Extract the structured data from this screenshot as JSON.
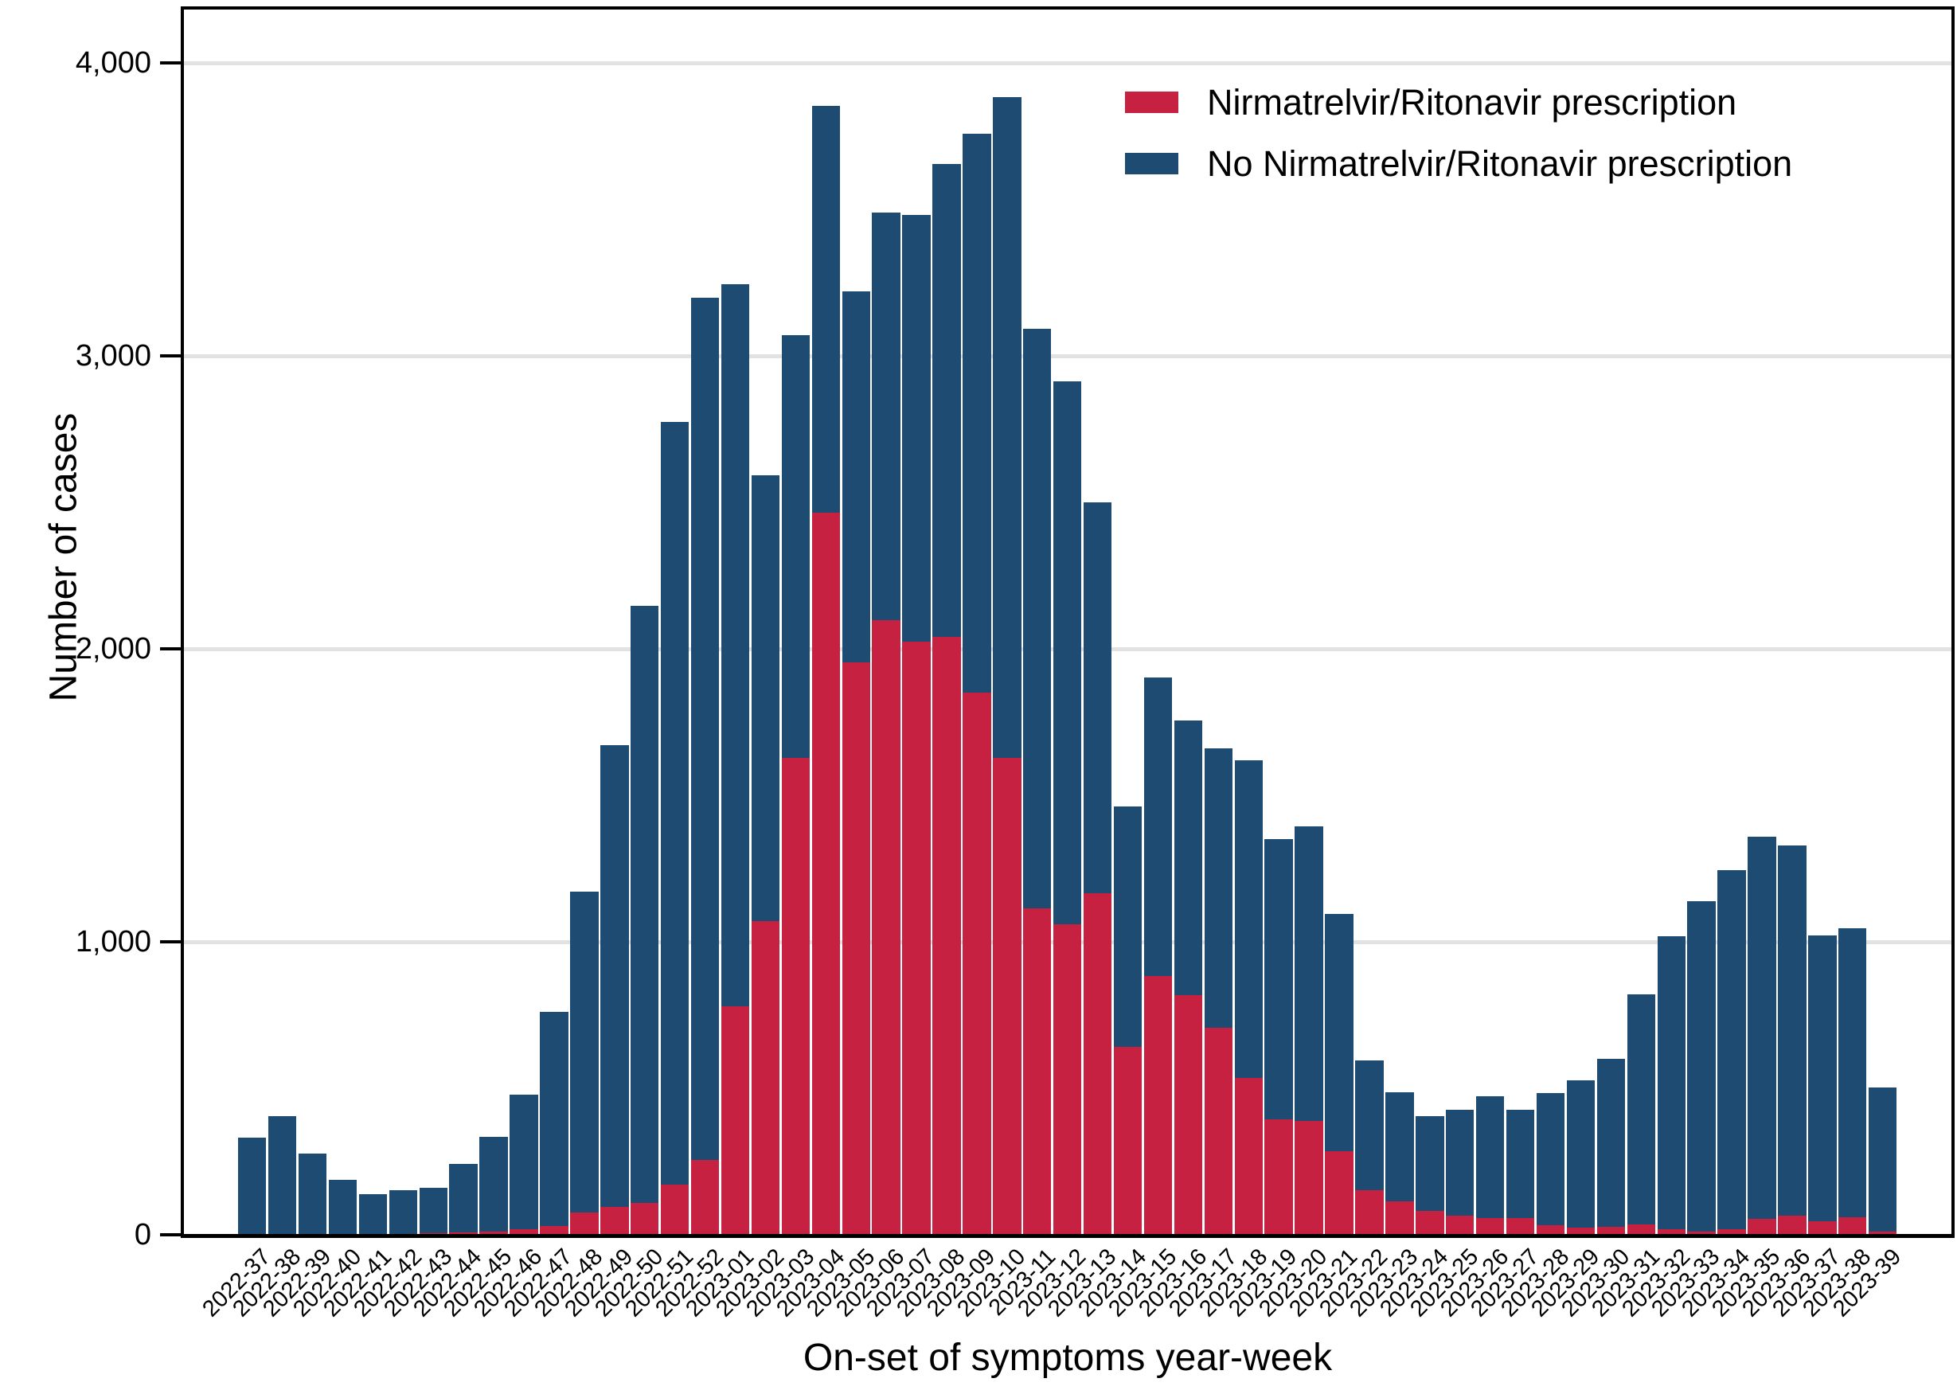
{
  "y_axis": {
    "title": "Number of cases",
    "tick_labels": [
      "4,000",
      "3,000",
      "2,000",
      "1,000",
      "0"
    ],
    "tick_values": [
      4000,
      3000,
      2000,
      1000,
      0
    ]
  },
  "x_axis": {
    "title": "On-set of symptoms year-week"
  },
  "legend": {
    "items": [
      {
        "label": "Nirmatrelvir/Ritonavir prescription",
        "color": "#c62140"
      },
      {
        "label": "No Nirmatrelvir/Ritonavir prescription",
        "color": "#1d4b72"
      }
    ]
  },
  "colors": {
    "prescription": "#c62140",
    "no_prescription": "#1d4b72",
    "gridline": "#e2e2e2",
    "axis": "#000000"
  },
  "chart_data": {
    "type": "bar",
    "stacked": true,
    "title": "",
    "xlabel": "On-set of symptoms year-week",
    "ylabel": "Number of cases",
    "ylim": [
      0,
      4100
    ],
    "yticks": [
      0,
      1000,
      2000,
      3000,
      4000
    ],
    "grid": true,
    "legend_position": "top-right-inside",
    "categories": [
      "2022-37",
      "2022-38",
      "2022-39",
      "2022-40",
      "2022-41",
      "2022-42",
      "2022-43",
      "2022-44",
      "2022-45",
      "2022-46",
      "2022-47",
      "2022-48",
      "2022-49",
      "2022-50",
      "2022-51",
      "2022-52",
      "2023-01",
      "2023-02",
      "2023-03",
      "2023-04",
      "2023-05",
      "2023-06",
      "2023-07",
      "2023-08",
      "2023-09",
      "2023-10",
      "2023-11",
      "2023-12",
      "2023-13",
      "2023-14",
      "2023-15",
      "2023-16",
      "2023-17",
      "2023-18",
      "2023-19",
      "2023-20",
      "2023-21",
      "2023-22",
      "2023-23",
      "2023-24",
      "2023-25",
      "2023-26",
      "2023-27",
      "2023-28",
      "2023-29",
      "2023-30",
      "2023-31",
      "2023-32",
      "2023-33",
      "2023-34",
      "2023-35",
      "2023-36",
      "2023-37",
      "2023-38",
      "2023-39"
    ],
    "series": [
      {
        "name": "Nirmatrelvir/Ritonavir prescription",
        "color": "#c62140",
        "values": [
          0,
          0,
          0,
          4,
          3,
          4,
          5,
          8,
          12,
          18,
          30,
          75,
          95,
          110,
          170,
          255,
          780,
          1072,
          1627,
          2465,
          1954,
          2097,
          2025,
          2042,
          1851,
          1627,
          1114,
          1060,
          1166,
          642,
          884,
          818,
          706,
          535,
          395,
          388,
          285,
          152,
          114,
          82,
          66,
          58,
          58,
          33,
          24,
          27,
          36,
          18,
          12,
          20,
          55,
          65,
          45,
          60,
          10
        ]
      },
      {
        "name": "No Nirmatrelvir/Ritonavir prescription",
        "color": "#1d4b72",
        "values": [
          332,
          404,
          278,
          184,
          137,
          149,
          155,
          234,
          321,
          460,
          732,
          1096,
          1576,
          2038,
          2604,
          2944,
          2464,
          1520,
          1445,
          1389,
          1265,
          1391,
          1456,
          1613,
          1908,
          2255,
          1978,
          1853,
          1334,
          820,
          1018,
          938,
          954,
          1085,
          956,
          1005,
          810,
          443,
          372,
          324,
          361,
          416,
          369,
          451,
          503,
          573,
          784,
          1002,
          1127,
          1224,
          1305,
          1263,
          978,
          986,
          494
        ]
      }
    ],
    "totals": [
      332,
      404,
      278,
      188,
      140,
      153,
      160,
      242,
      333,
      478,
      762,
      1171,
      1671,
      2148,
      2774,
      3199,
      3244,
      2592,
      3072,
      3854,
      3219,
      3488,
      3481,
      3655,
      3759,
      3882,
      3092,
      2913,
      2500,
      1462,
      1902,
      1756,
      1660,
      1620,
      1351,
      1393,
      1095,
      595,
      486,
      406,
      427,
      474,
      427,
      484,
      527,
      600,
      820,
      1020,
      1139,
      1244,
      1360,
      1328,
      1023,
      1046,
      504
    ]
  }
}
